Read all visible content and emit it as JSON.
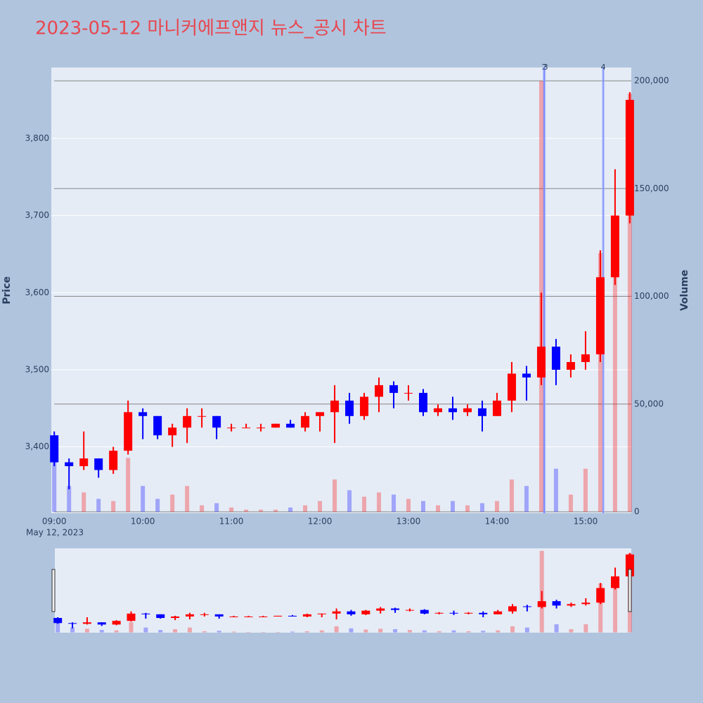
{
  "chart_data": {
    "type": "candlestick",
    "title": "2023-05-12 마니커에프앤지 뉴스_공시 차트",
    "title_color": "#e8474f",
    "x": [
      "09:00",
      "09:10",
      "09:20",
      "09:30",
      "09:40",
      "09:50",
      "10:00",
      "10:10",
      "10:20",
      "10:30",
      "10:40",
      "10:50",
      "11:00",
      "11:10",
      "11:20",
      "11:30",
      "11:40",
      "11:50",
      "12:00",
      "12:10",
      "12:20",
      "12:30",
      "12:40",
      "12:50",
      "13:00",
      "13:10",
      "13:20",
      "13:30",
      "13:40",
      "13:50",
      "14:00",
      "14:10",
      "14:20",
      "14:30",
      "14:40",
      "14:50",
      "15:00",
      "15:10",
      "15:20",
      "15:30"
    ],
    "open": [
      3415,
      3380,
      3375,
      3385,
      3370,
      3395,
      3445,
      3440,
      3415,
      3425,
      3440,
      3440,
      3425,
      3425,
      3425,
      3425,
      3430,
      3425,
      3440,
      3445,
      3460,
      3440,
      3465,
      3480,
      3470,
      3470,
      3445,
      3450,
      3445,
      3450,
      3440,
      3460,
      3495,
      3490,
      3530,
      3500,
      3510,
      3520,
      3620,
      3700
    ],
    "high": [
      3420,
      3385,
      3420,
      3385,
      3400,
      3460,
      3450,
      3440,
      3430,
      3450,
      3450,
      3440,
      3430,
      3430,
      3430,
      3430,
      3435,
      3445,
      3445,
      3480,
      3470,
      3470,
      3490,
      3485,
      3480,
      3475,
      3455,
      3465,
      3455,
      3460,
      3470,
      3510,
      3505,
      3600,
      3540,
      3520,
      3550,
      3655,
      3760,
      3860
    ],
    "low": [
      3375,
      3345,
      3370,
      3360,
      3365,
      3390,
      3410,
      3410,
      3400,
      3405,
      3425,
      3410,
      3420,
      3425,
      3420,
      3425,
      3425,
      3420,
      3420,
      3405,
      3430,
      3435,
      3445,
      3450,
      3460,
      3440,
      3440,
      3435,
      3440,
      3420,
      3440,
      3445,
      3460,
      3480,
      3480,
      3490,
      3500,
      3510,
      3610,
      3690
    ],
    "close": [
      3380,
      3375,
      3385,
      3370,
      3395,
      3445,
      3440,
      3415,
      3425,
      3440,
      3440,
      3425,
      3425,
      3425,
      3425,
      3430,
      3425,
      3440,
      3445,
      3460,
      3440,
      3465,
      3480,
      3470,
      3470,
      3445,
      3450,
      3445,
      3450,
      3440,
      3460,
      3495,
      3490,
      3530,
      3500,
      3510,
      3520,
      3620,
      3700,
      3850
    ],
    "volume": [
      25000,
      12000,
      9000,
      6000,
      5000,
      25000,
      12000,
      6000,
      8000,
      12000,
      3000,
      4000,
      2000,
      1000,
      1000,
      1000,
      2000,
      3000,
      5000,
      15000,
      10000,
      7000,
      9000,
      8000,
      6000,
      5000,
      3000,
      5000,
      3000,
      4000,
      5000,
      15000,
      12000,
      200000,
      20000,
      8000,
      20000,
      120000,
      130000,
      194000
    ],
    "increasing_color": "#ff0000",
    "decreasing_color": "#0000ff",
    "xlim": [
      "08:58",
      "15:31"
    ],
    "xticks": [
      "09:00",
      "10:00",
      "11:00",
      "12:00",
      "13:00",
      "14:00",
      "15:00"
    ],
    "x_sublabel": "May 12, 2023",
    "ylabel": "Price",
    "ylim": [
      3314,
      3892
    ],
    "yticks": [
      {
        "value": 3400,
        "label": "3,400"
      },
      {
        "value": 3500,
        "label": "3,500"
      },
      {
        "value": 3600,
        "label": "3,600"
      },
      {
        "value": 3700,
        "label": "3,700"
      },
      {
        "value": 3800,
        "label": "3,800"
      }
    ],
    "y2label": "Volume",
    "y2lim": [
      -650,
      206200
    ],
    "y2ticks": [
      0,
      {
        "value": 50000,
        "label": "50,000"
      },
      {
        "value": 100000,
        "label": "100,000"
      },
      {
        "value": 150000,
        "label": "150,000"
      },
      {
        "value": 200000,
        "label": "200,000"
      }
    ],
    "annotations": [
      {
        "x": "14:32",
        "text": "2"
      },
      {
        "x": "14:32",
        "text": "3"
      },
      {
        "x": "15:12",
        "text": "4"
      }
    ],
    "grid": true,
    "rangeslider": true
  }
}
